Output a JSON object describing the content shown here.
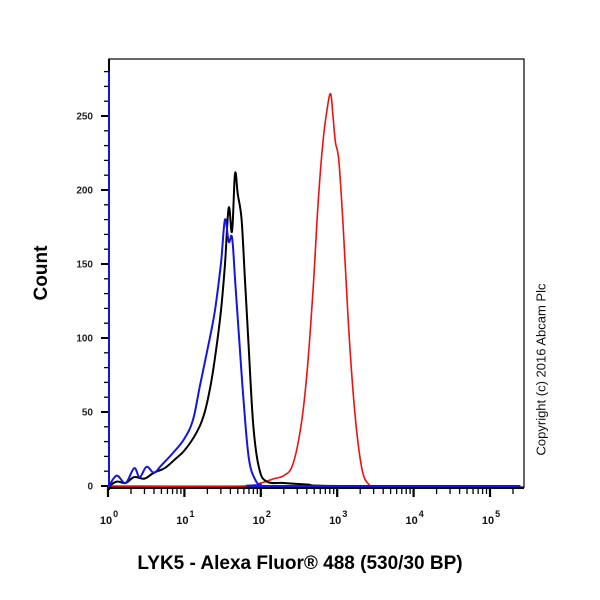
{
  "chart_data": {
    "type": "line",
    "title": "",
    "xlabel": "LYK5 - Alexa Fluor® 488 (530/30 BP)",
    "ylabel": "Count",
    "xscale": "log",
    "xlim": [
      0.5,
      250000
    ],
    "ylim": [
      0,
      280
    ],
    "x_ticks": [
      "10^0",
      "10^1",
      "10^2",
      "10^3",
      "10^4",
      "10^5"
    ],
    "y_ticks": [
      0,
      50,
      100,
      150,
      200,
      250
    ],
    "grid": false,
    "legend": null,
    "annotation": "Copyright (c) 2016 Abcam Plc",
    "series": [
      {
        "name": "black",
        "color": "#000000",
        "x": [
          0.5,
          0.52,
          0.6,
          0.8,
          1.0,
          1.3,
          1.7,
          2.2,
          3.0,
          4.0,
          5.5,
          7.5,
          10,
          14,
          18,
          22,
          26,
          30,
          34,
          38,
          42,
          46,
          50,
          56,
          62,
          70,
          80,
          95,
          120,
          200,
          400,
          1000,
          250000
        ],
        "y": [
          280,
          8,
          6,
          1,
          0,
          3,
          2,
          6,
          5,
          9,
          12,
          18,
          24,
          35,
          48,
          68,
          92,
          118,
          150,
          188,
          172,
          211,
          197,
          180,
          140,
          90,
          40,
          12,
          3,
          2,
          1,
          0,
          0
        ]
      },
      {
        "name": "blue",
        "color": "#1515e0",
        "x": [
          0.5,
          0.52,
          0.6,
          0.8,
          1.0,
          1.3,
          1.7,
          2.2,
          2.6,
          3.2,
          4.0,
          5.0,
          7.0,
          10,
          13,
          16,
          20,
          25,
          30,
          34,
          38,
          42,
          46,
          52,
          60,
          70,
          85,
          100,
          130,
          250000
        ],
        "y": [
          280,
          10,
          8,
          0,
          0,
          7,
          2,
          12,
          6,
          13,
          9,
          14,
          22,
          32,
          45,
          68,
          92,
          118,
          150,
          180,
          165,
          168,
          140,
          100,
          55,
          18,
          4,
          1,
          0,
          0
        ]
      },
      {
        "name": "red",
        "color": "#ee1111",
        "x": [
          0.5,
          60,
          100,
          150,
          200,
          260,
          330,
          400,
          480,
          560,
          650,
          740,
          820,
          880,
          950,
          1050,
          1200,
          1400,
          1700,
          2100,
          2600,
          3200,
          250000
        ],
        "y": [
          0,
          0,
          2,
          5,
          7,
          14,
          38,
          75,
          130,
          190,
          232,
          255,
          265,
          250,
          232,
          220,
          175,
          110,
          50,
          12,
          1,
          0,
          0
        ]
      }
    ]
  }
}
